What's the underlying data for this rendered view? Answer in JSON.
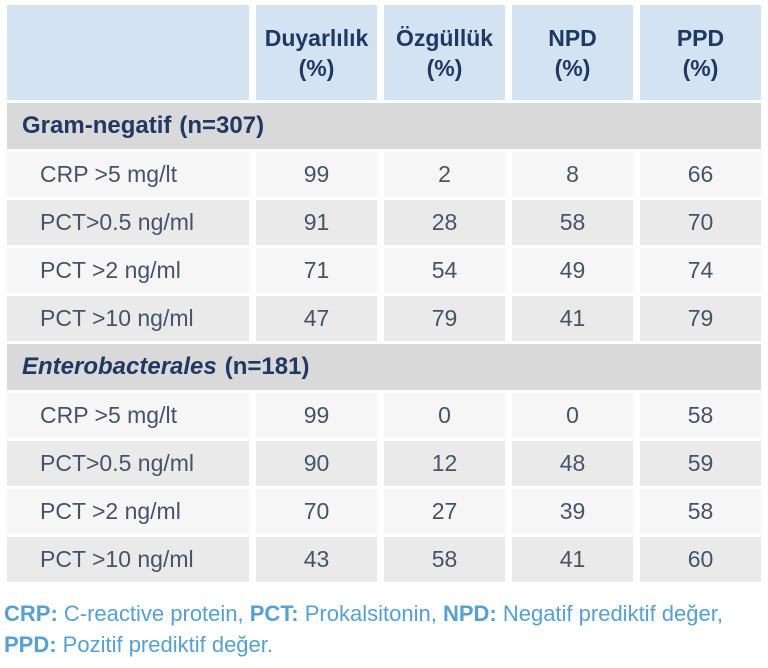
{
  "colors": {
    "header_bg": "#d3e3f1",
    "section_bg": "#d9d9d9",
    "row_bg": "#f6f6f6",
    "row_alt_bg": "#eaeaea",
    "navy": "#1f3864",
    "slate": "#44546a",
    "footnote_blue": "#56a0d3",
    "page_bg": "#ffffff"
  },
  "table": {
    "header": {
      "corner": "",
      "columns": [
        {
          "label": "Duyarlılık",
          "unit": "(%)"
        },
        {
          "label": "Özgüllük",
          "unit": "(%)"
        },
        {
          "label": "NPD",
          "unit": "(%)"
        },
        {
          "label": "PPD",
          "unit": "(%)"
        }
      ]
    },
    "sections": [
      {
        "title": "Gram-negatif",
        "n": "(n=307)",
        "title_italic": false,
        "rows": [
          {
            "label": "CRP >5 mg/lt",
            "values": [
              99,
              2,
              8,
              66
            ]
          },
          {
            "label": "PCT>0.5 ng/ml",
            "values": [
              91,
              28,
              58,
              70
            ]
          },
          {
            "label": "PCT >2 ng/ml",
            "values": [
              71,
              54,
              49,
              74
            ]
          },
          {
            "label": "PCT >10 ng/ml",
            "values": [
              47,
              79,
              41,
              79
            ]
          }
        ]
      },
      {
        "title": "Enterobacterales",
        "n": "(n=181)",
        "title_italic": true,
        "rows": [
          {
            "label": "CRP >5 mg/lt",
            "values": [
              99,
              0,
              0,
              58
            ]
          },
          {
            "label": "PCT>0.5 ng/ml",
            "values": [
              90,
              12,
              48,
              59
            ]
          },
          {
            "label": "PCT >2 ng/ml",
            "values": [
              70,
              27,
              39,
              58
            ]
          },
          {
            "label": "PCT >10 ng/ml",
            "values": [
              43,
              58,
              41,
              60
            ]
          }
        ]
      }
    ]
  },
  "footnote": {
    "parts": [
      {
        "abbr": "CRP:",
        "text": " C-reactive protein, "
      },
      {
        "abbr": "PCT:",
        "text": " Prokalsitonin, "
      },
      {
        "abbr": "NPD:",
        "text": " Negatif prediktif değer,"
      },
      {
        "abbr": "PPD:",
        "text": " Pozitif prediktif değer.",
        "newline": true
      }
    ]
  }
}
